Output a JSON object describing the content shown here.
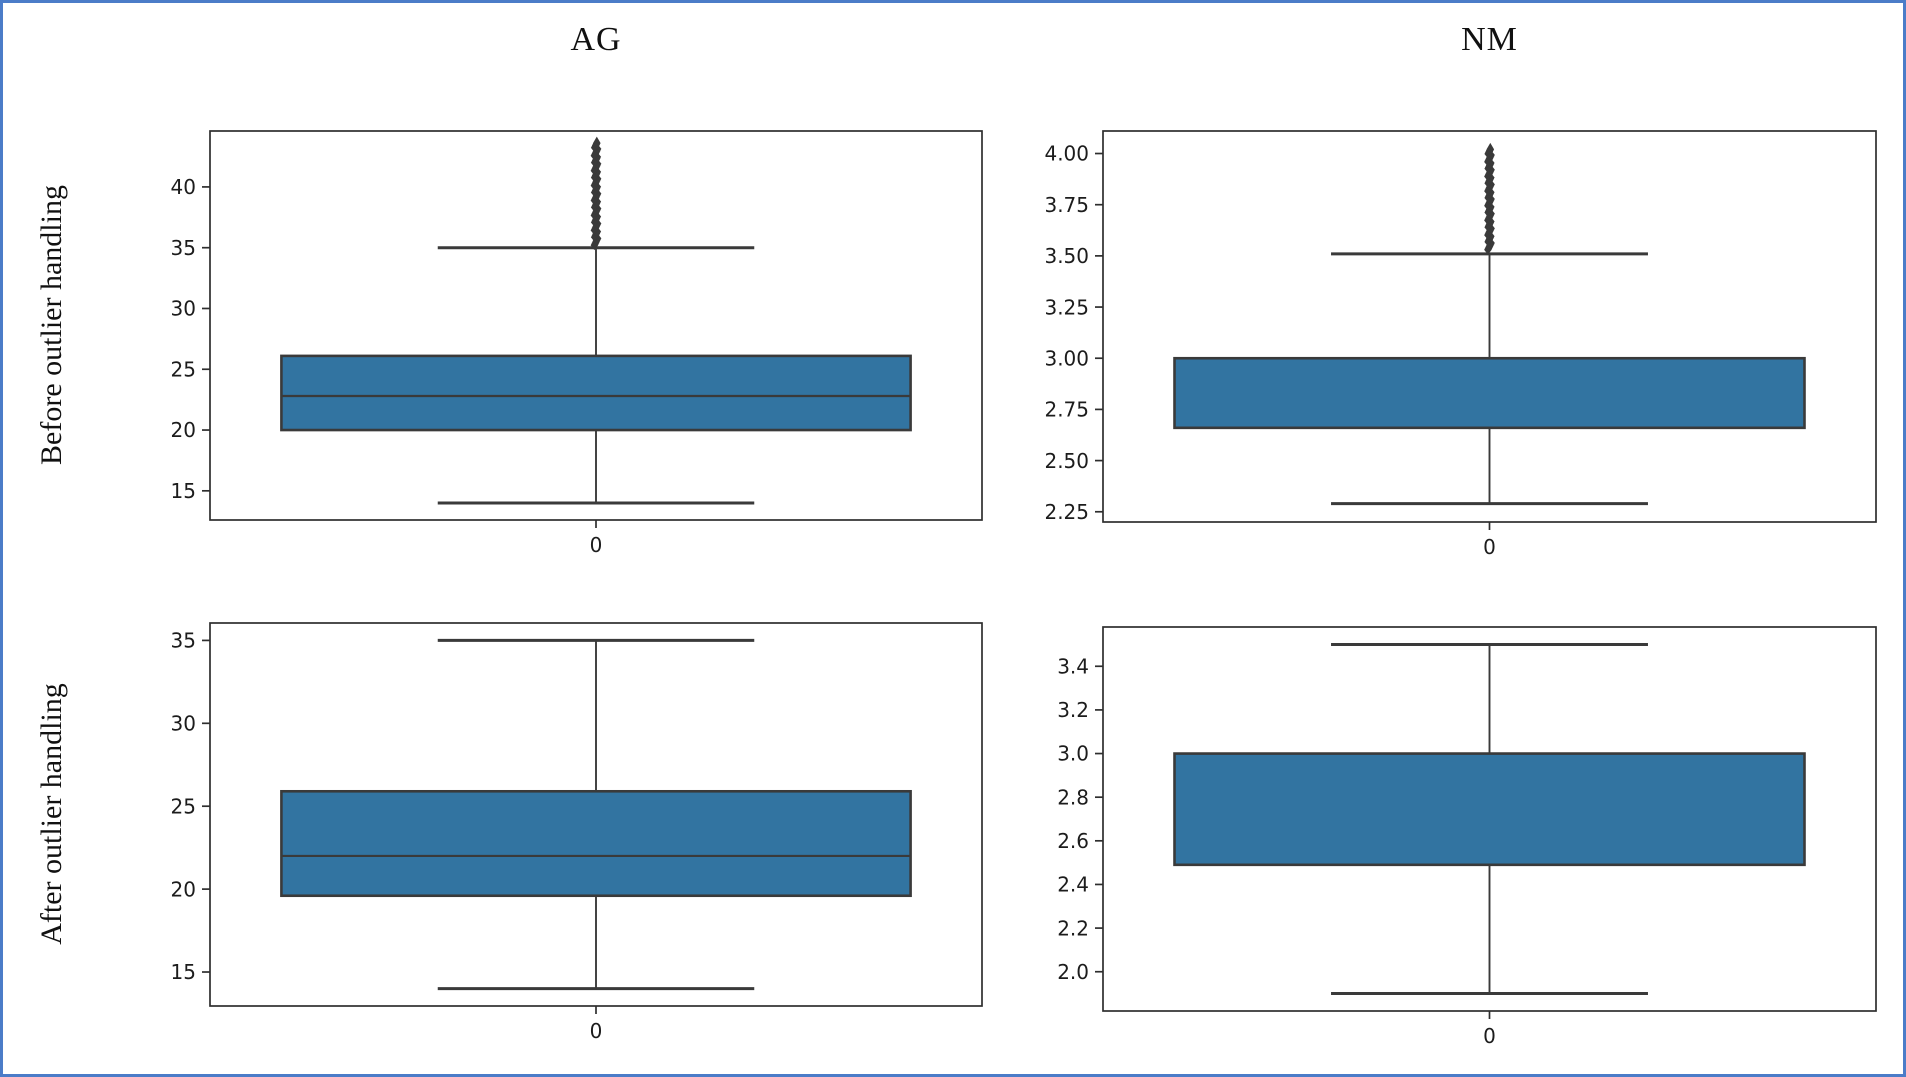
{
  "figure": {
    "border_color": "#4b7cc8",
    "background": "#ffffff"
  },
  "columns": [
    {
      "title": "AG"
    },
    {
      "title": "NM"
    }
  ],
  "rows": [
    {
      "label": "Before outlier handling"
    },
    {
      "label": "After outlier handling"
    }
  ],
  "colors": {
    "box_fill": "#3274a1",
    "box_edge": "#3a3a3a",
    "whisker": "#3a3a3a",
    "median": "#3a3a3a",
    "outlier": "#3a3a3a",
    "spine": "#2e2e2e",
    "tick_label": "#1c1c1c"
  },
  "chart_data": [
    {
      "type": "box",
      "column": "AG",
      "row": "Before outlier handling",
      "x_categories": [
        "0"
      ],
      "ylim": [
        12.6,
        44.6
      ],
      "yticks": [
        15,
        20,
        25,
        30,
        35,
        40
      ],
      "tick_decimals": 0,
      "box": {
        "q1": 20.0,
        "median": 22.8,
        "q3": 26.1,
        "whisker_low": 14.0,
        "whisker_high": 35.0
      },
      "outliers": {
        "min": 35.2,
        "max": 43.6,
        "approx_count": 90,
        "marker": "diamond"
      },
      "grid": false,
      "legend": null
    },
    {
      "type": "box",
      "column": "NM",
      "row": "Before outlier handling",
      "x_categories": [
        "0"
      ],
      "ylim": [
        2.2,
        4.11
      ],
      "yticks": [
        2.25,
        2.5,
        2.75,
        3.0,
        3.25,
        3.5,
        3.75,
        4.0
      ],
      "tick_decimals": 2,
      "box": {
        "q1": 2.66,
        "median": 3.0,
        "q3": 3.0,
        "whisker_low": 2.29,
        "whisker_high": 3.51
      },
      "outliers": {
        "min": 3.53,
        "max": 4.02,
        "approx_count": 90,
        "marker": "diamond"
      },
      "grid": false,
      "legend": null
    },
    {
      "type": "box",
      "column": "AG",
      "row": "After outlier handling",
      "x_categories": [
        "0"
      ],
      "ylim": [
        12.95,
        36.05
      ],
      "yticks": [
        15,
        20,
        25,
        30,
        35
      ],
      "tick_decimals": 0,
      "box": {
        "q1": 19.6,
        "median": 22.0,
        "q3": 25.9,
        "whisker_low": 14.0,
        "whisker_high": 35.0
      },
      "outliers": null,
      "grid": false,
      "legend": null
    },
    {
      "type": "box",
      "column": "NM",
      "row": "After outlier handling",
      "x_categories": [
        "0"
      ],
      "ylim": [
        1.82,
        3.58
      ],
      "yticks": [
        2.0,
        2.2,
        2.4,
        2.6,
        2.8,
        3.0,
        3.2,
        3.4
      ],
      "tick_decimals": 1,
      "box": {
        "q1": 2.49,
        "median": 3.0,
        "q3": 3.0,
        "whisker_low": 1.9,
        "whisker_high": 3.5
      },
      "outliers": null,
      "grid": false,
      "legend": null
    }
  ]
}
